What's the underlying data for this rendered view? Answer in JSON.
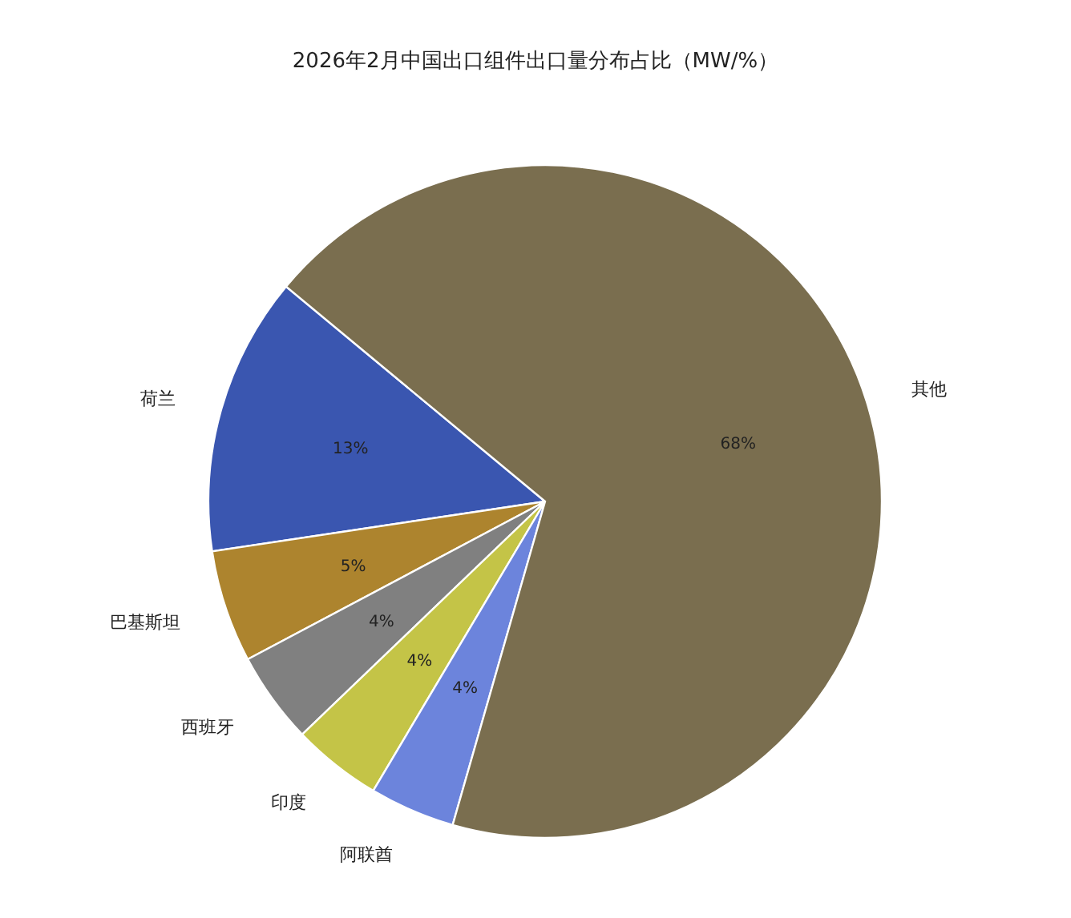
{
  "chart_data": {
    "type": "pie",
    "title": "2026年2月中国出口组件出口量分布占比（MW/%）",
    "categories": [
      "荷兰",
      "巴基斯坦",
      "西班牙",
      "印度",
      "阿联酋",
      "其他"
    ],
    "values": [
      13.4,
      5.4,
      4.4,
      4.3,
      4.1,
      68.4
    ],
    "colors": [
      "#3a56b0",
      "#ad842e",
      "#808080",
      "#c4c447",
      "#6c84dc",
      "#7a6e4f"
    ],
    "value_labels": [
      "13%",
      "5%",
      "4%",
      "4%",
      "4%",
      "68%"
    ]
  }
}
